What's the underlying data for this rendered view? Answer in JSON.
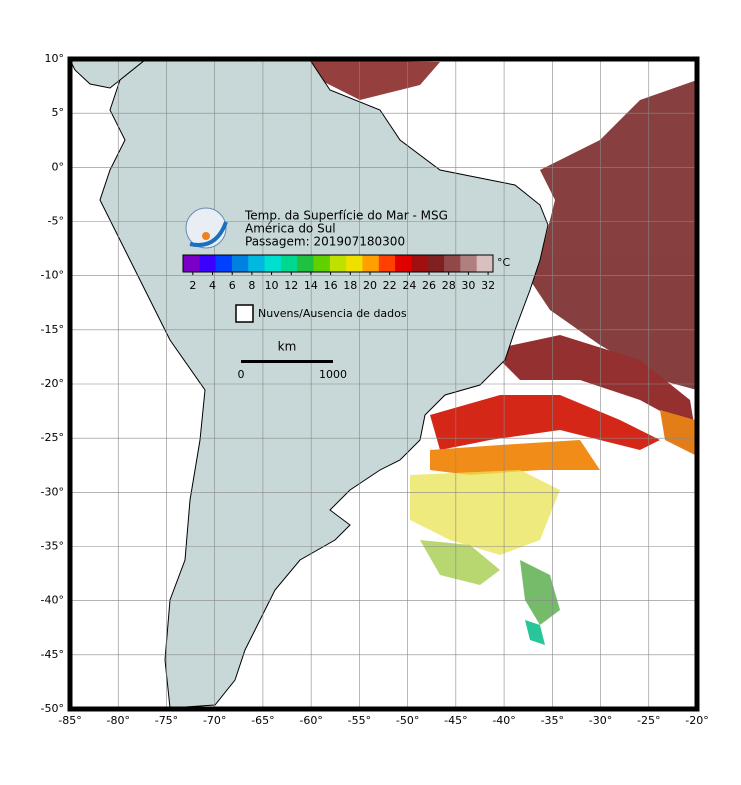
{
  "map": {
    "title": "Temp. da Superfície do Mar - MSG",
    "region": "América do Sul",
    "pass": "Passagem: 201907180300",
    "xlim": [
      -85,
      -20
    ],
    "ylim": [
      -50,
      10
    ],
    "xticks": [
      {
        "value": -85,
        "label": "-85°"
      },
      {
        "value": -80,
        "label": "-80°"
      },
      {
        "value": -75,
        "label": "-75°"
      },
      {
        "value": -70,
        "label": "-70°"
      },
      {
        "value": -65,
        "label": "-65°"
      },
      {
        "value": -60,
        "label": "-60°"
      },
      {
        "value": -55,
        "label": "-55°"
      },
      {
        "value": -50,
        "label": "-50°"
      },
      {
        "value": -45,
        "label": "-45°"
      },
      {
        "value": -40,
        "label": "-40°"
      },
      {
        "value": -35,
        "label": "-35°"
      },
      {
        "value": -30,
        "label": "-30°"
      },
      {
        "value": -25,
        "label": "-25°"
      },
      {
        "value": -20,
        "label": "-20°"
      }
    ],
    "yticks": [
      {
        "value": 10,
        "label": "10°"
      },
      {
        "value": 5,
        "label": "5°"
      },
      {
        "value": 0,
        "label": "0°"
      },
      {
        "value": -5,
        "label": "-5°"
      },
      {
        "value": -10,
        "label": "-10°"
      },
      {
        "value": -15,
        "label": "-15°"
      },
      {
        "value": -20,
        "label": "-20°"
      },
      {
        "value": -25,
        "label": "-25°"
      },
      {
        "value": -30,
        "label": "-30°"
      },
      {
        "value": -35,
        "label": "-35°"
      },
      {
        "value": -40,
        "label": "-40°"
      },
      {
        "value": -45,
        "label": "-45°"
      },
      {
        "value": -50,
        "label": "-50°"
      }
    ],
    "grid": true,
    "colorbar": {
      "unit": "°C",
      "lim": [
        1,
        32.5
      ],
      "ticks": [
        2,
        4,
        6,
        8,
        10,
        12,
        14,
        16,
        18,
        20,
        22,
        24,
        26,
        28,
        30,
        32
      ],
      "colors": [
        "#7a00c8",
        "#3c00ff",
        "#0040ff",
        "#0080e0",
        "#00b8e0",
        "#00e0d0",
        "#00d890",
        "#20c040",
        "#60d000",
        "#c0e000",
        "#f0e000",
        "#ffa000",
        "#ff4000",
        "#e00000",
        "#a01010",
        "#802020",
        "#904848",
        "#b08080",
        "#d8c0c0"
      ]
    },
    "legend": "Nuvens/Ausencia de dados",
    "scale": {
      "unit": "km",
      "start": "0",
      "end": "1000"
    }
  }
}
